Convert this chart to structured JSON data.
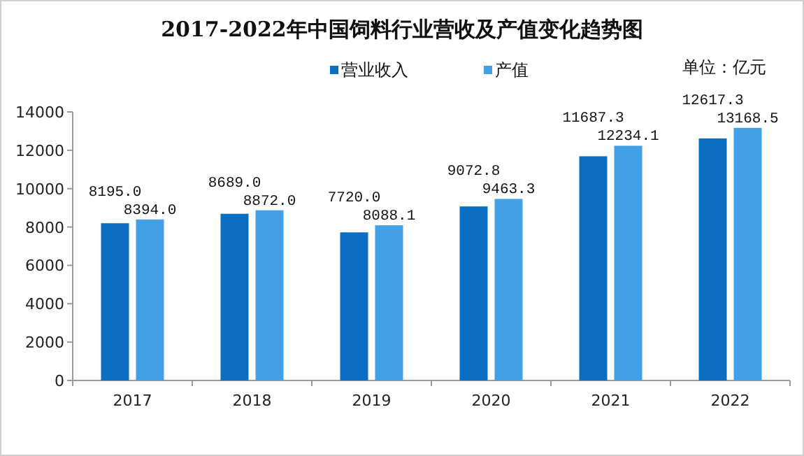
{
  "chart_data": {
    "type": "bar",
    "title": "2017-2022年中国饲料行业营收及产值变化趋势图",
    "annotations": [
      "单位：亿元"
    ],
    "categories": [
      "2017",
      "2018",
      "2019",
      "2020",
      "2021",
      "2022"
    ],
    "series": [
      {
        "name": "营业收入",
        "color": "#0a6fc2",
        "values": [
          8195.0,
          8689.0,
          7720.0,
          9072.8,
          11687.3,
          12617.3
        ],
        "value_labels": [
          "8195.0",
          "8689.0",
          "7720.0",
          "9072.8",
          "11687.3",
          "12617.3"
        ]
      },
      {
        "name": "产值",
        "color": "#42a0e6",
        "values": [
          8394.0,
          8872.0,
          8088.1,
          9463.3,
          12234.1,
          13168.5
        ],
        "value_labels": [
          "8394.0",
          "8872.0",
          "8088.1",
          "9463.3",
          "12234.1",
          "13168.5"
        ]
      }
    ],
    "ylim": [
      0,
      14000
    ],
    "yticks": [
      0,
      2000,
      4000,
      6000,
      8000,
      10000,
      12000,
      14000
    ],
    "legend": "top",
    "grid": false
  }
}
